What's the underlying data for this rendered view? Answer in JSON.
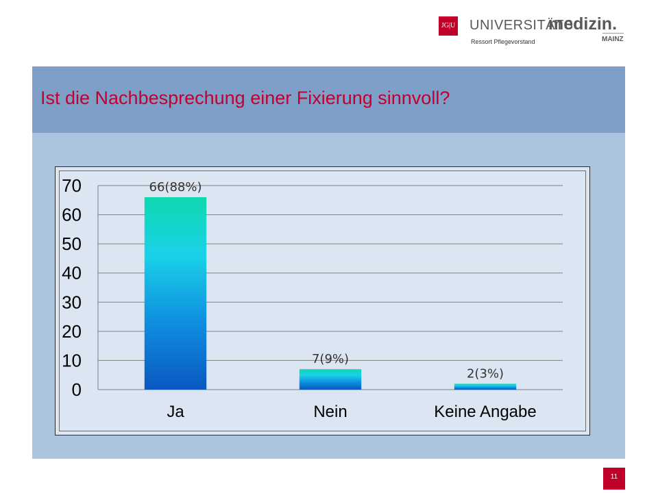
{
  "logo": {
    "mark": "JG|U",
    "universitaets": "UNIVERSITÄTS",
    "medizin": "medizin.",
    "mainz": "MAINZ",
    "subtitle": "Ressort Pflegevorstand"
  },
  "slide": {
    "title": "Ist die Nachbesprechung einer Fixierung sinnvoll?",
    "page_number": "11"
  },
  "colors": {
    "title": "#c0002e",
    "accent_red": "#c1002a",
    "title_band": "#7ea0c8",
    "content_bg": "#adc4df",
    "chart_bg": "#dce6f2"
  },
  "chart_data": {
    "type": "bar",
    "categories": [
      "Ja",
      "Nein",
      "Keine Angabe"
    ],
    "values": [
      66,
      7,
      2
    ],
    "data_labels": [
      "66(88%)",
      "7(9%)",
      "2(3%)"
    ],
    "ylim": [
      0,
      70
    ],
    "yticks": [
      "0",
      "10",
      "20",
      "30",
      "40",
      "50",
      "60",
      "70"
    ],
    "grid": true,
    "title": "",
    "xlabel": "",
    "ylabel": ""
  }
}
